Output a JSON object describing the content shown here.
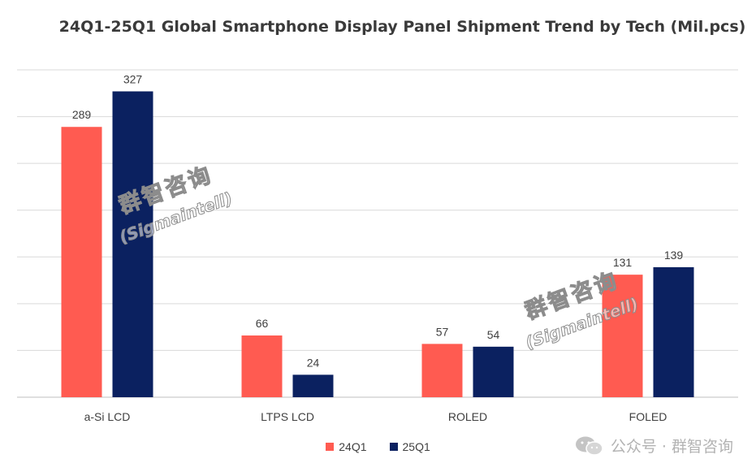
{
  "chart_data": {
    "type": "bar",
    "title": "24Q1-25Q1 Global Smartphone Display Panel Shipment Trend by Tech  (Mil.pcs)",
    "categories": [
      "a-Si LCD",
      "LTPS LCD",
      "ROLED",
      "FOLED"
    ],
    "series": [
      {
        "name": "24Q1",
        "values": [
          289,
          66,
          57,
          131
        ],
        "color": "#FF5B51"
      },
      {
        "name": "25Q1",
        "values": [
          327,
          24,
          54,
          139
        ],
        "color": "#0B2160"
      }
    ],
    "ylim": [
      0,
      350
    ],
    "y_tick_step": 50,
    "grid": true,
    "y_tick_labels_visible": false,
    "legend": "bottom"
  },
  "watermarks": [
    {
      "line1": "群智咨询",
      "line2": "(Sigmaintell)"
    },
    {
      "line1": "群智咨询",
      "line2": "(Sigmaintell)"
    }
  ],
  "footer": {
    "icon": "wechat-icon",
    "text": "公众号 · 群智咨询"
  }
}
